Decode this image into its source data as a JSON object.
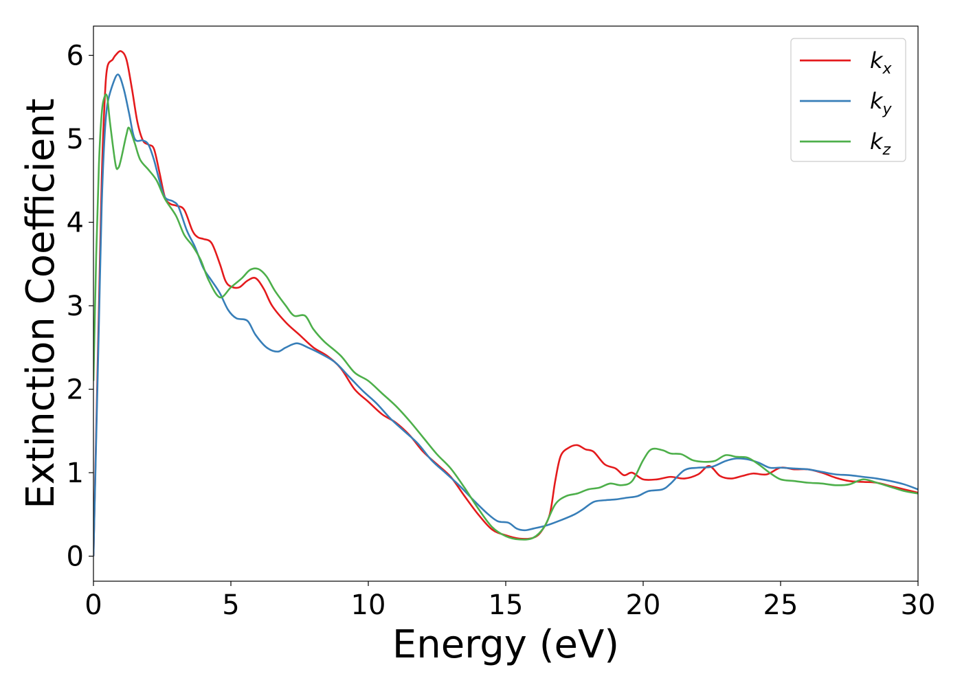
{
  "chart_data": {
    "type": "line",
    "xlabel": "Energy (eV)",
    "ylabel": "Extinction Coefficient",
    "xlim": [
      0,
      30
    ],
    "ylim": [
      -0.3,
      6.35
    ],
    "xticks": [
      "0",
      "5",
      "10",
      "15",
      "20",
      "25",
      "30"
    ],
    "yticks": [
      "0",
      "1",
      "2",
      "3",
      "4",
      "5",
      "6"
    ],
    "grid": false,
    "legend_position": "top-right",
    "series": [
      {
        "name": "k",
        "subscript": "x",
        "color": "#e41a1c",
        "points": [
          [
            0,
            0
          ],
          [
            0.1,
            1.5
          ],
          [
            0.2,
            3.0
          ],
          [
            0.3,
            4.5
          ],
          [
            0.4,
            5.4
          ],
          [
            0.5,
            5.85
          ],
          [
            0.7,
            5.95
          ],
          [
            0.8,
            6.0
          ],
          [
            1.0,
            6.05
          ],
          [
            1.2,
            5.95
          ],
          [
            1.4,
            5.6
          ],
          [
            1.6,
            5.2
          ],
          [
            1.8,
            4.98
          ],
          [
            2.0,
            4.93
          ],
          [
            2.2,
            4.88
          ],
          [
            2.4,
            4.6
          ],
          [
            2.6,
            4.3
          ],
          [
            2.8,
            4.22
          ],
          [
            3.0,
            4.2
          ],
          [
            3.3,
            4.15
          ],
          [
            3.6,
            3.9
          ],
          [
            3.8,
            3.82
          ],
          [
            4.0,
            3.8
          ],
          [
            4.3,
            3.75
          ],
          [
            4.6,
            3.5
          ],
          [
            4.8,
            3.3
          ],
          [
            5.0,
            3.23
          ],
          [
            5.3,
            3.22
          ],
          [
            5.6,
            3.3
          ],
          [
            5.9,
            3.33
          ],
          [
            6.2,
            3.2
          ],
          [
            6.5,
            3.0
          ],
          [
            7.0,
            2.8
          ],
          [
            7.5,
            2.65
          ],
          [
            8.0,
            2.5
          ],
          [
            8.5,
            2.4
          ],
          [
            9.0,
            2.25
          ],
          [
            9.5,
            2.0
          ],
          [
            10.0,
            1.85
          ],
          [
            10.5,
            1.7
          ],
          [
            11.0,
            1.6
          ],
          [
            11.5,
            1.45
          ],
          [
            12.0,
            1.25
          ],
          [
            12.5,
            1.1
          ],
          [
            13.0,
            0.95
          ],
          [
            13.5,
            0.72
          ],
          [
            14.0,
            0.5
          ],
          [
            14.5,
            0.32
          ],
          [
            15.0,
            0.25
          ],
          [
            15.5,
            0.21
          ],
          [
            16.0,
            0.22
          ],
          [
            16.3,
            0.3
          ],
          [
            16.6,
            0.5
          ],
          [
            16.8,
            0.9
          ],
          [
            17.0,
            1.2
          ],
          [
            17.3,
            1.3
          ],
          [
            17.6,
            1.33
          ],
          [
            17.9,
            1.28
          ],
          [
            18.2,
            1.25
          ],
          [
            18.6,
            1.1
          ],
          [
            19.0,
            1.05
          ],
          [
            19.3,
            0.97
          ],
          [
            19.6,
            1.0
          ],
          [
            20.0,
            0.92
          ],
          [
            20.5,
            0.92
          ],
          [
            21.0,
            0.95
          ],
          [
            21.5,
            0.93
          ],
          [
            22.0,
            0.98
          ],
          [
            22.4,
            1.08
          ],
          [
            22.8,
            0.96
          ],
          [
            23.2,
            0.93
          ],
          [
            23.6,
            0.96
          ],
          [
            24.0,
            0.99
          ],
          [
            24.5,
            0.98
          ],
          [
            25.0,
            1.06
          ],
          [
            25.5,
            1.04
          ],
          [
            26.0,
            1.04
          ],
          [
            26.5,
            1.0
          ],
          [
            27.0,
            0.94
          ],
          [
            27.5,
            0.9
          ],
          [
            28.0,
            0.89
          ],
          [
            28.5,
            0.88
          ],
          [
            29.0,
            0.84
          ],
          [
            29.5,
            0.8
          ],
          [
            30.0,
            0.76
          ]
        ]
      },
      {
        "name": "k",
        "subscript": "y",
        "color": "#377eb8",
        "points": [
          [
            0,
            0
          ],
          [
            0.1,
            1.4
          ],
          [
            0.2,
            2.8
          ],
          [
            0.3,
            4.2
          ],
          [
            0.4,
            5.0
          ],
          [
            0.5,
            5.4
          ],
          [
            0.7,
            5.65
          ],
          [
            0.9,
            5.77
          ],
          [
            1.1,
            5.6
          ],
          [
            1.3,
            5.3
          ],
          [
            1.5,
            5.0
          ],
          [
            1.8,
            4.98
          ],
          [
            2.0,
            4.93
          ],
          [
            2.2,
            4.75
          ],
          [
            2.4,
            4.5
          ],
          [
            2.6,
            4.3
          ],
          [
            2.9,
            4.25
          ],
          [
            3.1,
            4.18
          ],
          [
            3.4,
            3.9
          ],
          [
            3.7,
            3.7
          ],
          [
            4.0,
            3.45
          ],
          [
            4.3,
            3.3
          ],
          [
            4.6,
            3.15
          ],
          [
            4.9,
            2.95
          ],
          [
            5.2,
            2.85
          ],
          [
            5.6,
            2.82
          ],
          [
            5.9,
            2.65
          ],
          [
            6.3,
            2.5
          ],
          [
            6.7,
            2.45
          ],
          [
            7.0,
            2.5
          ],
          [
            7.4,
            2.55
          ],
          [
            7.8,
            2.5
          ],
          [
            8.3,
            2.42
          ],
          [
            8.8,
            2.32
          ],
          [
            9.3,
            2.15
          ],
          [
            9.8,
            1.98
          ],
          [
            10.3,
            1.83
          ],
          [
            10.8,
            1.65
          ],
          [
            11.3,
            1.5
          ],
          [
            11.8,
            1.35
          ],
          [
            12.3,
            1.15
          ],
          [
            12.8,
            1.0
          ],
          [
            13.3,
            0.85
          ],
          [
            13.8,
            0.68
          ],
          [
            14.3,
            0.52
          ],
          [
            14.7,
            0.42
          ],
          [
            15.1,
            0.4
          ],
          [
            15.4,
            0.33
          ],
          [
            15.7,
            0.31
          ],
          [
            16.0,
            0.33
          ],
          [
            16.5,
            0.37
          ],
          [
            17.0,
            0.43
          ],
          [
            17.5,
            0.5
          ],
          [
            17.8,
            0.56
          ],
          [
            18.2,
            0.65
          ],
          [
            18.6,
            0.67
          ],
          [
            19.0,
            0.68
          ],
          [
            19.4,
            0.7
          ],
          [
            19.8,
            0.72
          ],
          [
            20.2,
            0.78
          ],
          [
            20.7,
            0.8
          ],
          [
            21.0,
            0.87
          ],
          [
            21.5,
            1.03
          ],
          [
            22.0,
            1.06
          ],
          [
            22.5,
            1.07
          ],
          [
            23.0,
            1.14
          ],
          [
            23.4,
            1.17
          ],
          [
            23.8,
            1.16
          ],
          [
            24.2,
            1.12
          ],
          [
            24.6,
            1.06
          ],
          [
            25.0,
            1.06
          ],
          [
            25.5,
            1.05
          ],
          [
            26.0,
            1.04
          ],
          [
            26.5,
            1.01
          ],
          [
            27.0,
            0.98
          ],
          [
            27.5,
            0.97
          ],
          [
            28.0,
            0.95
          ],
          [
            28.5,
            0.93
          ],
          [
            29.0,
            0.9
          ],
          [
            29.5,
            0.86
          ],
          [
            30.0,
            0.8
          ]
        ]
      },
      {
        "name": "k",
        "subscript": "z",
        "color": "#4daf4a",
        "points": [
          [
            0,
            2.1
          ],
          [
            0.1,
            3.6
          ],
          [
            0.2,
            4.7
          ],
          [
            0.3,
            5.3
          ],
          [
            0.4,
            5.5
          ],
          [
            0.5,
            5.5
          ],
          [
            0.6,
            5.2
          ],
          [
            0.8,
            4.7
          ],
          [
            0.9,
            4.65
          ],
          [
            1.0,
            4.75
          ],
          [
            1.2,
            5.05
          ],
          [
            1.3,
            5.13
          ],
          [
            1.5,
            4.95
          ],
          [
            1.7,
            4.75
          ],
          [
            2.0,
            4.63
          ],
          [
            2.3,
            4.5
          ],
          [
            2.6,
            4.28
          ],
          [
            3.0,
            4.08
          ],
          [
            3.3,
            3.85
          ],
          [
            3.6,
            3.72
          ],
          [
            3.9,
            3.55
          ],
          [
            4.2,
            3.3
          ],
          [
            4.6,
            3.1
          ],
          [
            5.0,
            3.22
          ],
          [
            5.4,
            3.33
          ],
          [
            5.7,
            3.43
          ],
          [
            6.0,
            3.44
          ],
          [
            6.3,
            3.35
          ],
          [
            6.6,
            3.18
          ],
          [
            7.0,
            3.0
          ],
          [
            7.3,
            2.88
          ],
          [
            7.7,
            2.88
          ],
          [
            8.0,
            2.72
          ],
          [
            8.4,
            2.57
          ],
          [
            9.0,
            2.4
          ],
          [
            9.5,
            2.2
          ],
          [
            10.0,
            2.1
          ],
          [
            10.5,
            1.95
          ],
          [
            11.0,
            1.8
          ],
          [
            11.5,
            1.62
          ],
          [
            12.0,
            1.42
          ],
          [
            12.5,
            1.22
          ],
          [
            13.0,
            1.05
          ],
          [
            13.5,
            0.82
          ],
          [
            14.0,
            0.57
          ],
          [
            14.5,
            0.35
          ],
          [
            15.0,
            0.24
          ],
          [
            15.5,
            0.2
          ],
          [
            16.0,
            0.22
          ],
          [
            16.4,
            0.35
          ],
          [
            16.8,
            0.62
          ],
          [
            17.2,
            0.72
          ],
          [
            17.6,
            0.75
          ],
          [
            18.0,
            0.8
          ],
          [
            18.4,
            0.82
          ],
          [
            18.8,
            0.87
          ],
          [
            19.2,
            0.85
          ],
          [
            19.6,
            0.9
          ],
          [
            20.0,
            1.15
          ],
          [
            20.3,
            1.28
          ],
          [
            20.7,
            1.27
          ],
          [
            21.0,
            1.23
          ],
          [
            21.4,
            1.22
          ],
          [
            21.8,
            1.15
          ],
          [
            22.2,
            1.13
          ],
          [
            22.6,
            1.14
          ],
          [
            23.0,
            1.21
          ],
          [
            23.4,
            1.19
          ],
          [
            23.8,
            1.18
          ],
          [
            24.2,
            1.1
          ],
          [
            24.6,
            1.0
          ],
          [
            25.0,
            0.92
          ],
          [
            25.5,
            0.9
          ],
          [
            26.0,
            0.88
          ],
          [
            26.5,
            0.87
          ],
          [
            27.0,
            0.85
          ],
          [
            27.5,
            0.86
          ],
          [
            28.0,
            0.92
          ],
          [
            28.5,
            0.88
          ],
          [
            29.0,
            0.83
          ],
          [
            29.5,
            0.78
          ],
          [
            30.0,
            0.75
          ]
        ]
      }
    ]
  }
}
